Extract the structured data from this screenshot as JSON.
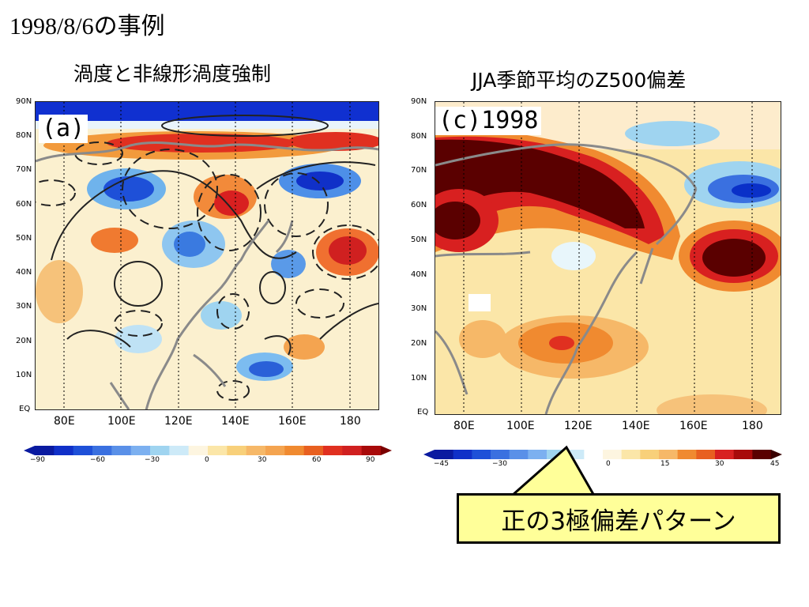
{
  "slide": {
    "title": "1998/8/6の事例"
  },
  "left_panel": {
    "subtitle": "渦度と非線形渦度強制",
    "label": "(a)",
    "y_ticks": [
      "90N",
      "80N",
      "70N",
      "60N",
      "50N",
      "40N",
      "30N",
      "20N",
      "10N",
      "EQ"
    ],
    "x_ticks": [
      "80E",
      "100E",
      "120E",
      "140E",
      "160E",
      "180"
    ],
    "colorbar": {
      "labels": [
        "−90",
        "−60",
        "−30",
        "0",
        "30",
        "60",
        "90"
      ]
    }
  },
  "right_panel": {
    "subtitle": "JJA季節平均のZ500偏差",
    "label": "(c)1998",
    "y_ticks": [
      "90N",
      "80N",
      "70N",
      "60N",
      "50N",
      "40N",
      "30N",
      "20N",
      "10N",
      "EQ"
    ],
    "x_ticks": [
      "80E",
      "100E",
      "120E",
      "140E",
      "160E",
      "180"
    ],
    "colorbar": {
      "labels": [
        "−45",
        "−30",
        "0",
        "15",
        "30",
        "45"
      ]
    }
  },
  "callout": {
    "text": "正の3極偏差パターン"
  },
  "colors": {
    "deep_red": "#5a0000",
    "red": "#e02020",
    "orange": "#f08a30",
    "pale_yellow": "#fbe6a8",
    "light_blue": "#9fd4f0",
    "blue": "#2a6fe0",
    "deep_blue": "#0a20c8",
    "coastline": "#888888",
    "callout_fill": "#ffff99"
  }
}
